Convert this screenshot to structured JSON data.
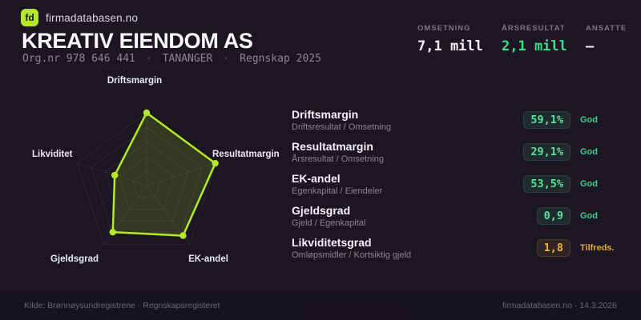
{
  "brand": {
    "logo_text": "fd",
    "site": "firmadatabasen.no"
  },
  "header": {
    "company": "KREATIV EIENDOM AS",
    "orgnr": "Org.nr 978 646 441",
    "separator": "·",
    "city": "TANANGER",
    "report": "Regnskap 2025"
  },
  "stats": [
    {
      "label": "OMSETNING",
      "value": "7,1 mill",
      "tone": "plain"
    },
    {
      "label": "ÅRSRESULTAT",
      "value": "2,1 mill",
      "tone": "green"
    },
    {
      "label": "ANSATTE",
      "value": "–",
      "tone": "plain"
    }
  ],
  "chart_data": {
    "type": "radar",
    "axes": [
      "Driftsmargin",
      "Resultatmargin",
      "EK-andel",
      "Gjeldsgrad",
      "Likviditet"
    ],
    "values_normalized": [
      1.0,
      0.99,
      0.85,
      0.79,
      0.46
    ],
    "rings": 5,
    "stroke": "#b4ea25",
    "fill": "rgba(180, 234, 37, 0.16)",
    "grid_color": "rgba(255, 255, 255, 0.07)",
    "legend": "none",
    "note": "axis order clockwise from top: Driftsmargin, Resultatmargin, EK-andel, Gjeldsgrad, Likviditet"
  },
  "metrics": [
    {
      "title": "Driftsmargin",
      "formula": "Driftsresultat / Omsetning",
      "value": "59,1%",
      "status": "God",
      "tone": "good"
    },
    {
      "title": "Resultatmargin",
      "formula": "Årsresultat / Omsetning",
      "value": "29,1%",
      "status": "God",
      "tone": "good"
    },
    {
      "title": "EK-andel",
      "formula": "Egenkapital / Eiendeler",
      "value": "53,5%",
      "status": "God",
      "tone": "good"
    },
    {
      "title": "Gjeldsgrad",
      "formula": "Gjeld / Egenkapital",
      "value": "0,9",
      "status": "God",
      "tone": "good"
    },
    {
      "title": "Likviditetsgrad",
      "formula": "Omløpsmidler / Kortsiktig gjeld",
      "value": "1,8",
      "status": "Tilfreds.",
      "tone": "warn"
    }
  ],
  "footer": {
    "source": "Kilde: Brønnøysundregistrene · Regnskapsregisteret",
    "site_date": "firmadatabasen.no · 14.3.2026"
  },
  "colors": {
    "background": "#1b1621",
    "accent_lime": "#b4ea25",
    "positive_green": "#3fdc8a",
    "warn_amber": "#e8b542",
    "text_primary": "#fbfafd",
    "text_muted": "#8b8698"
  }
}
